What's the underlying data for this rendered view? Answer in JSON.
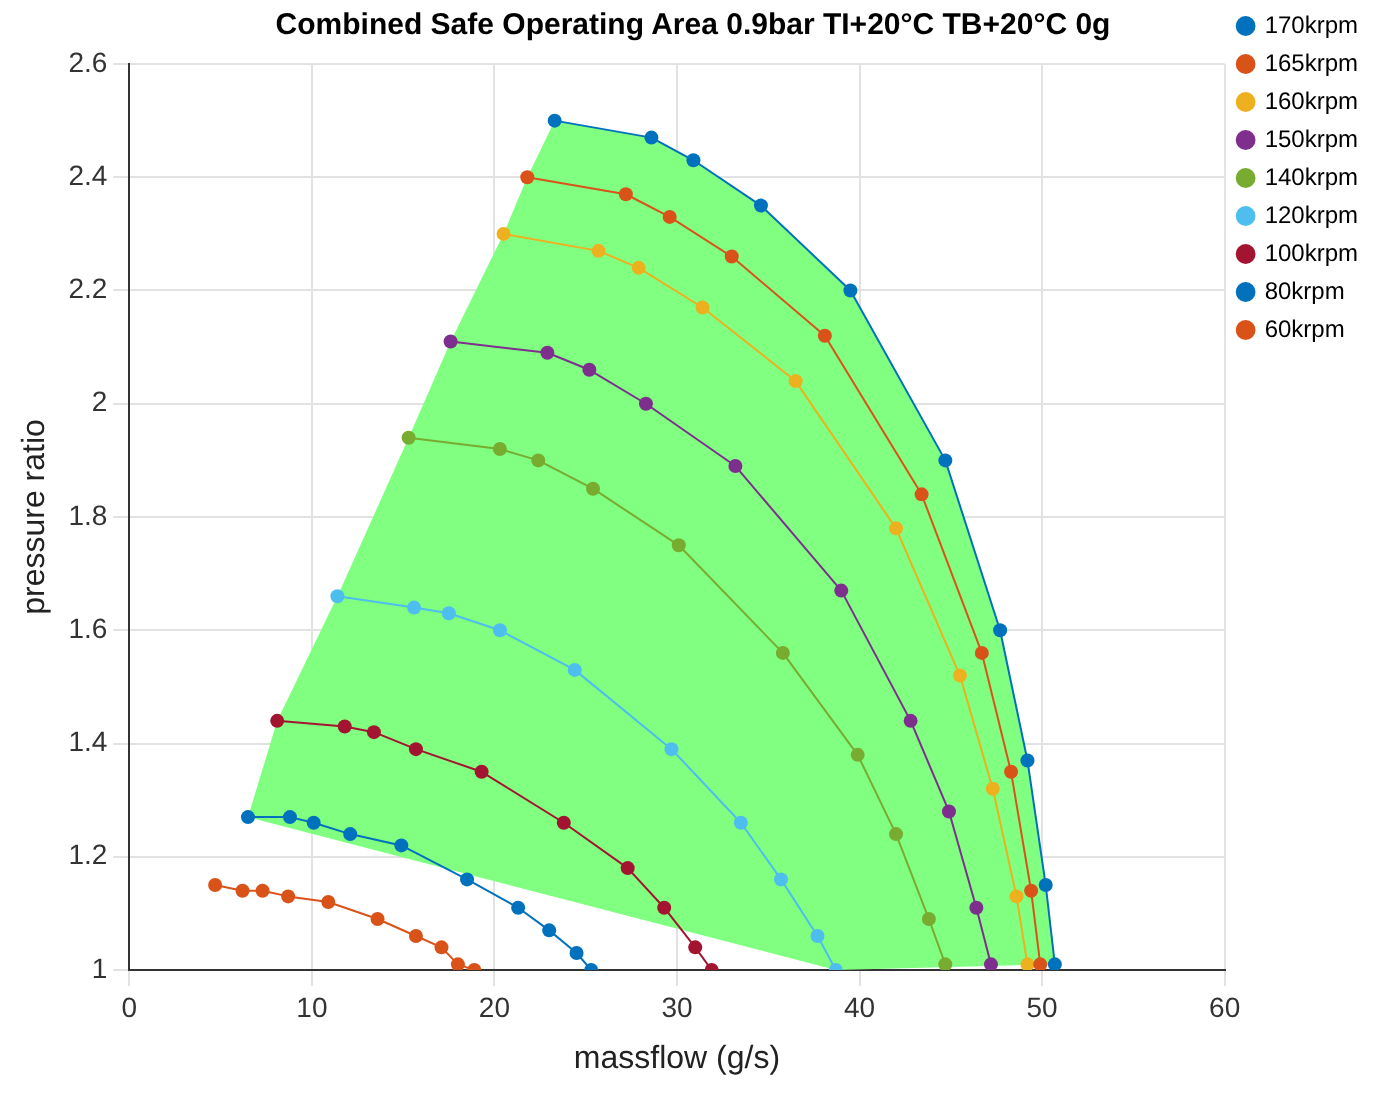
{
  "chart_data": {
    "type": "line",
    "title": "Combined Safe Operating Area 0.9bar TI+20°C TB+20°C 0g",
    "xlabel": "massflow (g/s)",
    "ylabel": "pressure ratio",
    "xlim": [
      0,
      60
    ],
    "xticks": [
      0,
      10,
      20,
      30,
      40,
      50,
      60
    ],
    "ylim": [
      1,
      2.6
    ],
    "yticks": [
      1,
      1.2,
      1.4,
      1.6,
      1.8,
      2,
      2.2,
      2.4,
      2.6
    ],
    "grid": true,
    "legend": "top right",
    "line_style": "solid",
    "series": [
      {
        "type": "area",
        "color": "#80ff80",
        "x": [
          6.5,
          8.1,
          11.4,
          15.3,
          17.6,
          20.5,
          21.8,
          23.3,
          28.6,
          30.9,
          34.6,
          39.5,
          44.7,
          47.7,
          49.2,
          50.2,
          50.7,
          38.7,
          6.5
        ],
        "values": [
          1.27,
          1.44,
          1.66,
          1.94,
          2.11,
          2.3,
          2.4,
          2.5,
          2.47,
          2.43,
          2.35,
          2.2,
          1.9,
          1.6,
          1.37,
          1.15,
          1.01,
          1.0,
          1.27
        ]
      },
      {
        "name": "170krpm",
        "marker": "circle",
        "color": "#0072bd",
        "x": [
          23.3,
          28.6,
          30.9,
          34.6,
          39.5,
          44.7,
          47.7,
          49.2,
          50.2,
          50.7
        ],
        "values": [
          2.5,
          2.47,
          2.43,
          2.35,
          2.2,
          1.9,
          1.6,
          1.37,
          1.15,
          1.01
        ]
      },
      {
        "name": "165krpm",
        "marker": "circle",
        "color": "#d95319",
        "x": [
          21.8,
          27.2,
          29.6,
          33.0,
          38.1,
          43.4,
          46.7,
          48.3,
          49.4,
          49.9
        ],
        "values": [
          2.4,
          2.37,
          2.33,
          2.26,
          2.12,
          1.84,
          1.56,
          1.35,
          1.14,
          1.01
        ]
      },
      {
        "name": "160krpm",
        "marker": "circle",
        "color": "#edb120",
        "x": [
          20.5,
          25.7,
          27.9,
          31.4,
          36.5,
          42.0,
          45.5,
          47.3,
          48.6,
          49.2
        ],
        "values": [
          2.3,
          2.27,
          2.24,
          2.17,
          2.04,
          1.78,
          1.52,
          1.32,
          1.13,
          1.01
        ]
      },
      {
        "name": "150krpm",
        "marker": "circle",
        "color": "#7e2f8e",
        "x": [
          17.6,
          22.9,
          25.2,
          28.3,
          33.2,
          39.0,
          42.8,
          44.9,
          46.4,
          47.2
        ],
        "values": [
          2.11,
          2.09,
          2.06,
          2.0,
          1.89,
          1.67,
          1.44,
          1.28,
          1.11,
          1.01
        ]
      },
      {
        "name": "140krpm",
        "marker": "circle",
        "color": "#77ac30",
        "x": [
          15.3,
          20.3,
          22.4,
          25.4,
          30.1,
          35.8,
          39.9,
          42.0,
          43.8,
          44.7
        ],
        "values": [
          1.94,
          1.92,
          1.9,
          1.85,
          1.75,
          1.56,
          1.38,
          1.24,
          1.09,
          1.01
        ]
      },
      {
        "name": "120krpm",
        "marker": "circle",
        "color": "#4dbeee",
        "x": [
          11.4,
          15.6,
          17.5,
          20.3,
          24.4,
          29.7,
          33.5,
          35.7,
          37.7,
          38.7
        ],
        "values": [
          1.66,
          1.64,
          1.63,
          1.6,
          1.53,
          1.39,
          1.26,
          1.16,
          1.06,
          1.0
        ]
      },
      {
        "name": "100krpm",
        "marker": "circle",
        "color": "#a2142f",
        "x": [
          8.1,
          11.8,
          13.4,
          15.7,
          19.3,
          23.8,
          27.3,
          29.3,
          31.0,
          31.9
        ],
        "values": [
          1.44,
          1.43,
          1.42,
          1.39,
          1.35,
          1.26,
          1.18,
          1.11,
          1.04,
          1.0
        ]
      },
      {
        "name": "80krpm",
        "marker": "circle",
        "color": "#0072bd",
        "x": [
          6.5,
          8.8,
          10.1,
          12.1,
          14.9,
          18.5,
          21.3,
          23.0,
          24.5,
          25.3
        ],
        "values": [
          1.27,
          1.27,
          1.26,
          1.24,
          1.22,
          1.16,
          1.11,
          1.07,
          1.03,
          1.0
        ]
      },
      {
        "name": "60krpm",
        "marker": "circle",
        "color": "#d95319",
        "x": [
          4.7,
          6.2,
          7.3,
          8.7,
          10.9,
          13.6,
          15.7,
          17.1,
          18.0,
          18.9
        ],
        "values": [
          1.15,
          1.14,
          1.14,
          1.13,
          1.12,
          1.09,
          1.06,
          1.04,
          1.01,
          1.0
        ]
      }
    ]
  }
}
